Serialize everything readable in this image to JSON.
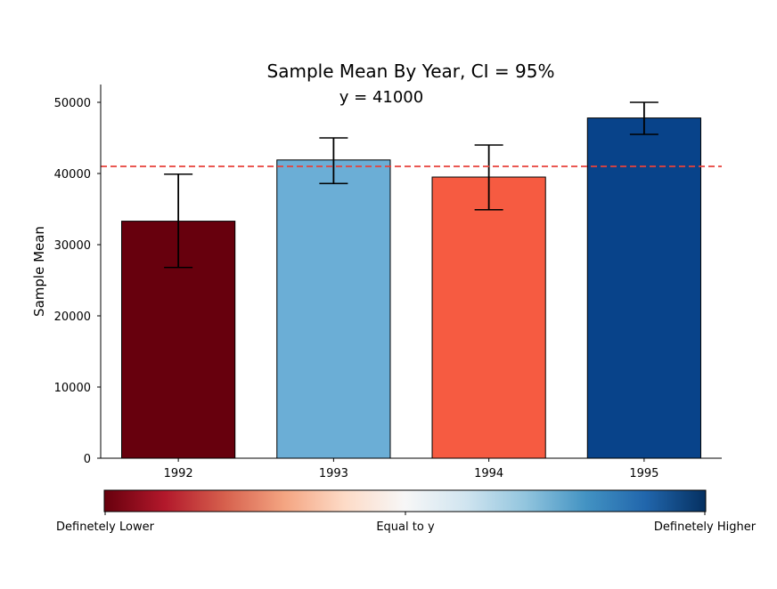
{
  "chart_data": {
    "type": "bar",
    "title": "Sample Mean By Year, CI = 95%",
    "subtitle": "y = 41000",
    "xlabel": "",
    "ylabel": "Sample Mean",
    "categories": [
      "1992",
      "1993",
      "1994",
      "1995"
    ],
    "values": [
      33300,
      41900,
      39500,
      47800
    ],
    "error_low": [
      26800,
      38600,
      34900,
      45500
    ],
    "error_high": [
      39900,
      45000,
      44000,
      50000
    ],
    "bar_colors": [
      "#67000d",
      "#6baed6",
      "#f65b41",
      "#08438a"
    ],
    "reference_line": {
      "value": 41000,
      "color": "#e8413a",
      "style": "dashed"
    },
    "ylim": [
      0,
      52500
    ],
    "yticks": [
      "0",
      "10000",
      "20000",
      "30000",
      "40000",
      "50000"
    ],
    "grid": false,
    "colorbar": {
      "labels": {
        "low": "Definetely Lower",
        "mid": "Equal to y",
        "high": "Definetely Higher"
      },
      "stops": [
        "#67000d",
        "#b2182b",
        "#d6604d",
        "#f4a582",
        "#fddbc7",
        "#f7f7f7",
        "#d1e5f0",
        "#92c5de",
        "#4393c3",
        "#2166ac",
        "#053061"
      ]
    }
  }
}
